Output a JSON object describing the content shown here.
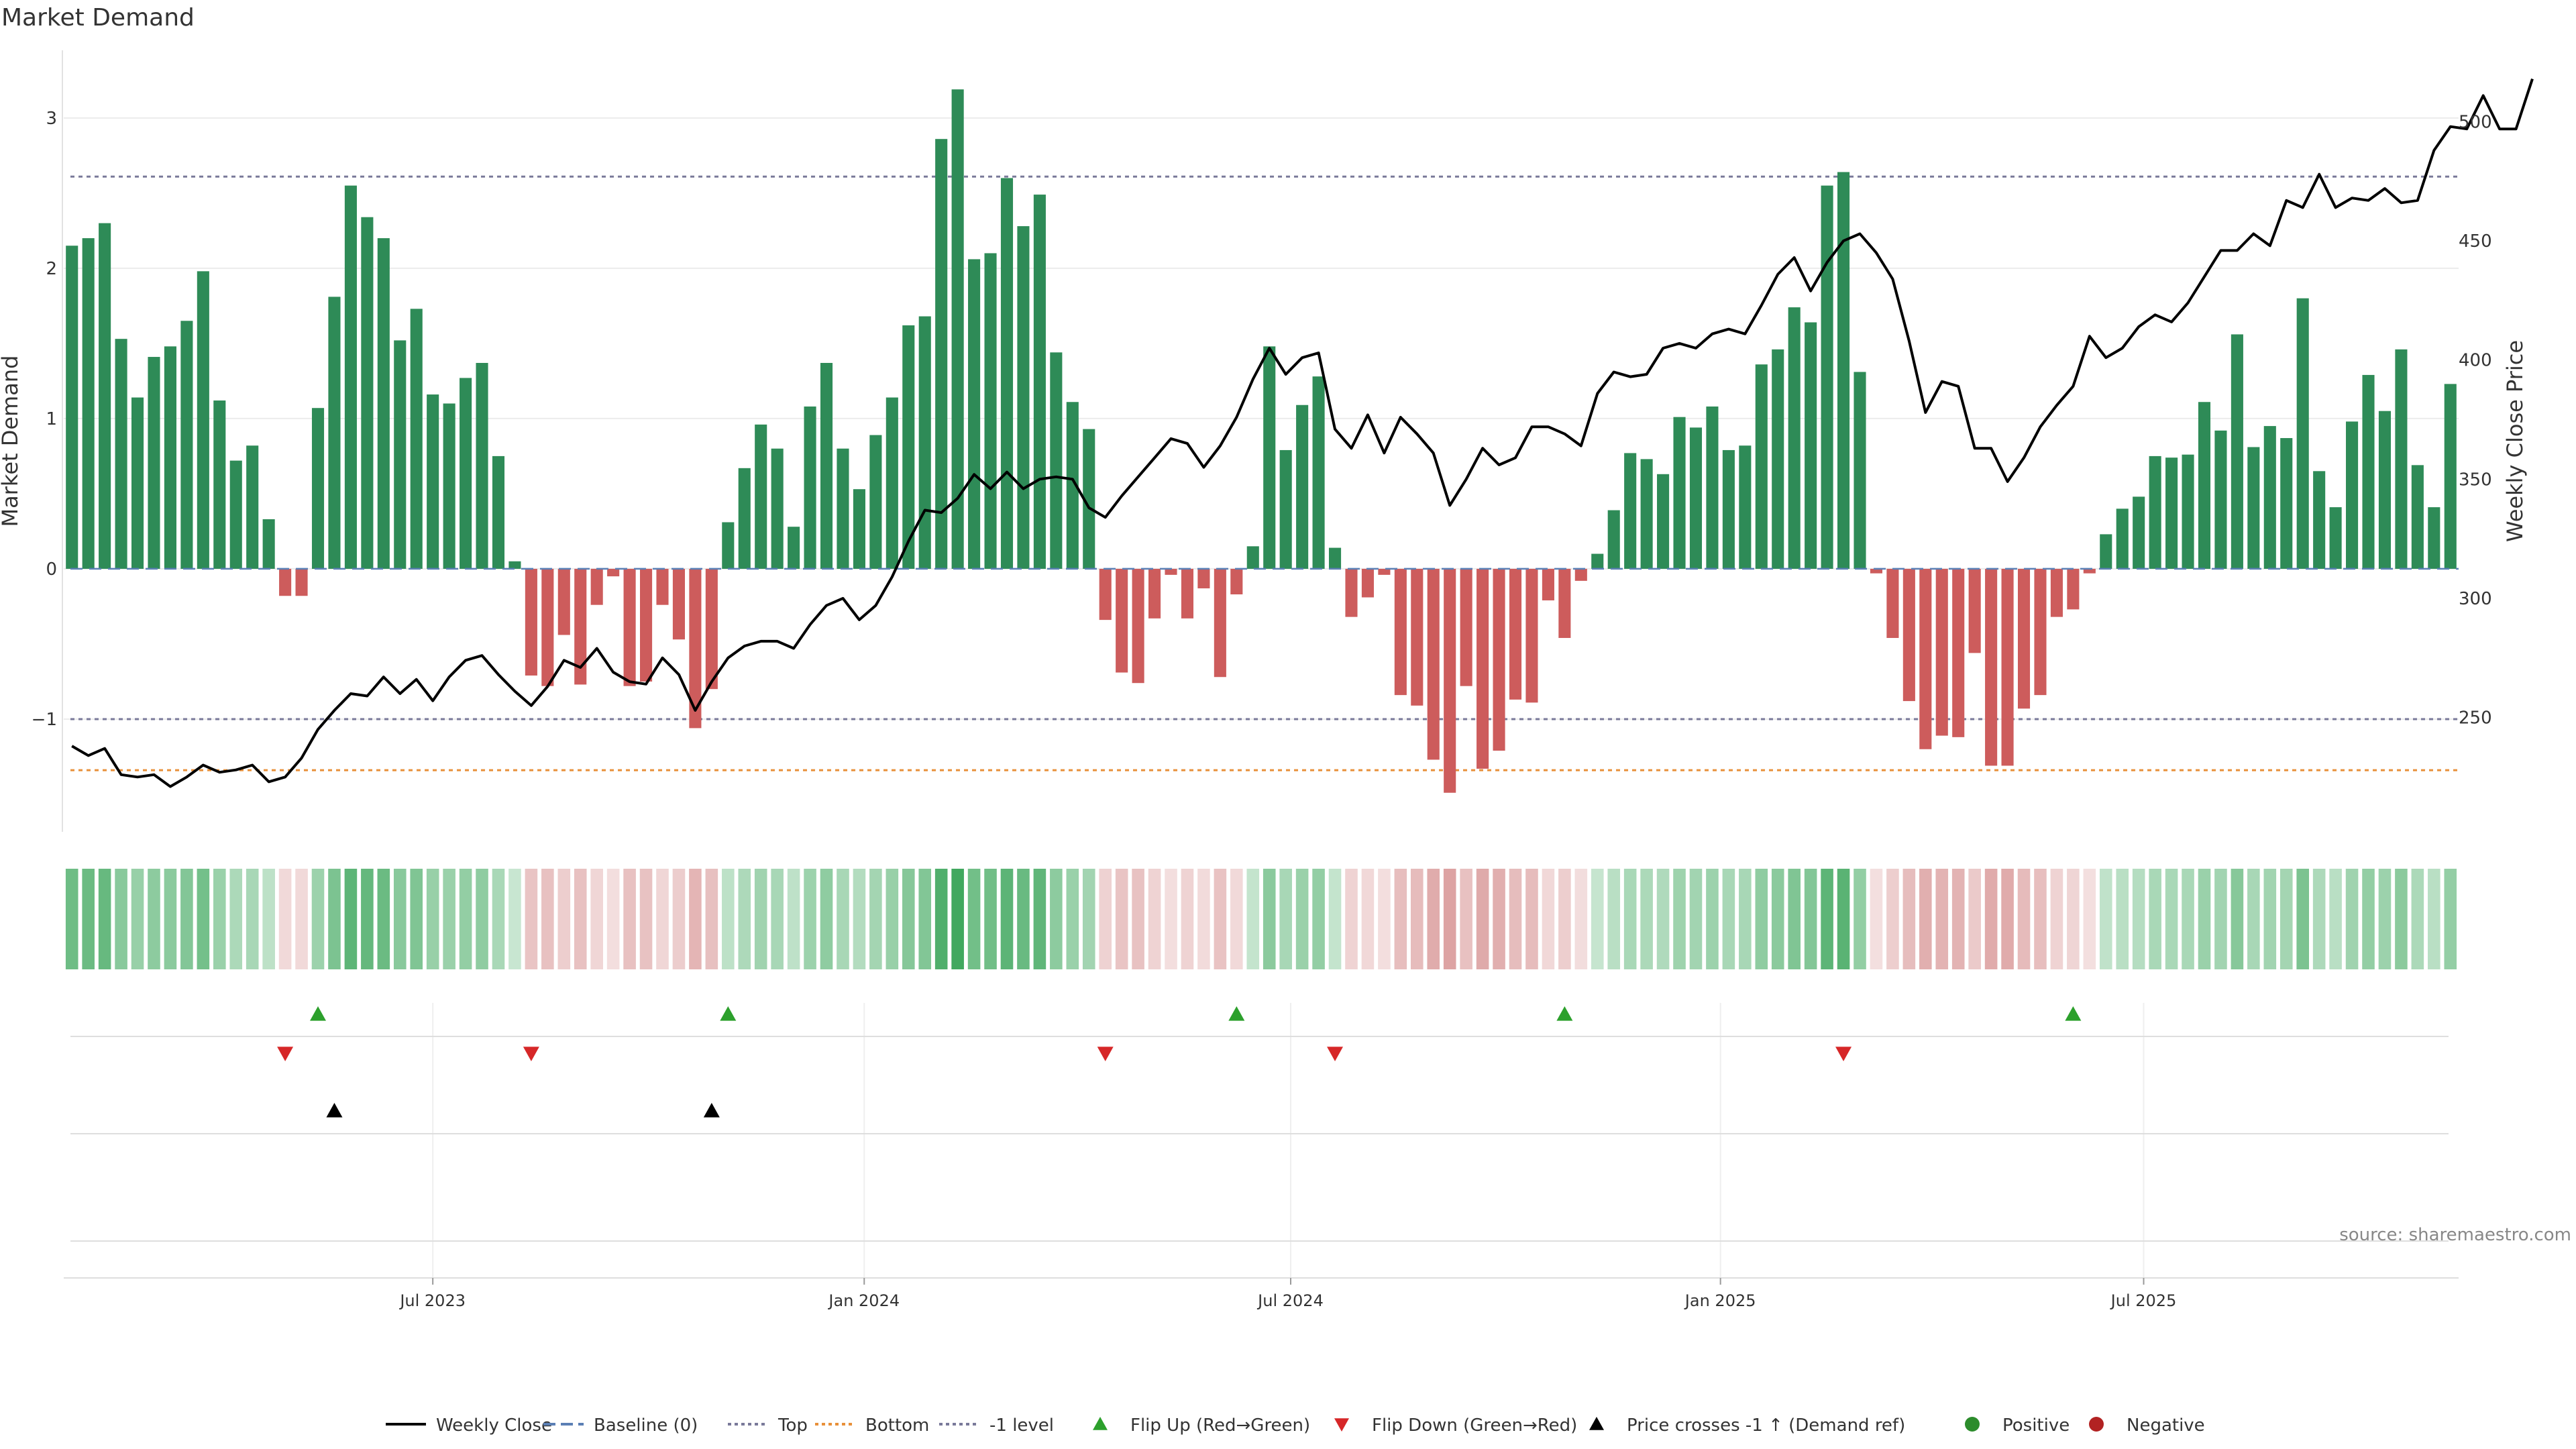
{
  "title": "Market Demand",
  "source": "source: sharemaestro.com",
  "colors": {
    "positive": "#2e8b57",
    "negative": "#cd5c5c",
    "price_line": "#000000",
    "level_line": "#7a7a9a",
    "bottom_line": "#e8903a",
    "flip_up": "#2ca02c",
    "flip_down": "#d62728",
    "price_cross": "#000000",
    "heat_positive_strong": "#41a85f",
    "heat_negative_strong": "#d99999"
  },
  "chart_data": {
    "type": "bar",
    "title": "Market Demand",
    "ylabel": "Market Demand",
    "y2label": "Weekly Close Price",
    "ylim": [
      -1.75,
      3.45
    ],
    "y2lim": [
      202,
      530
    ],
    "yticks": [
      -1,
      0,
      1,
      2,
      3
    ],
    "y2ticks": [
      250,
      300,
      350,
      400,
      450,
      500
    ],
    "x_tick_labels": [
      "Jul 2023",
      "Jan 2024",
      "Jul 2024",
      "Jan 2025",
      "Jul 2025"
    ],
    "x_tick_positions": [
      22.5,
      48.8,
      74.8,
      101,
      126.8
    ],
    "reference_lines": {
      "top": 2.61,
      "minus_one_level": -1,
      "bottom": -1.34,
      "baseline": 0
    },
    "demand": [
      2.15,
      2.2,
      2.3,
      1.53,
      1.14,
      1.41,
      1.48,
      1.65,
      1.98,
      1.12,
      0.72,
      0.82,
      0.33,
      -0.18,
      -0.18,
      1.07,
      1.81,
      2.55,
      2.34,
      2.2,
      1.52,
      1.73,
      1.16,
      1.1,
      1.27,
      1.37,
      0.75,
      0.05,
      -0.71,
      -0.78,
      -0.44,
      -0.77,
      -0.24,
      -0.05,
      -0.78,
      -0.75,
      -0.24,
      -0.47,
      -1.06,
      -0.8,
      0.31,
      0.67,
      0.96,
      0.8,
      0.28,
      1.08,
      1.37,
      0.8,
      0.53,
      0.89,
      1.14,
      1.62,
      1.68,
      2.86,
      3.19,
      2.06,
      2.1,
      2.6,
      2.28,
      2.49,
      1.44,
      1.11,
      0.93,
      -0.34,
      -0.69,
      -0.76,
      -0.33,
      -0.04,
      -0.33,
      -0.13,
      -0.72,
      -0.17,
      0.15,
      1.48,
      0.79,
      1.09,
      1.28,
      0.14,
      -0.32,
      -0.19,
      -0.04,
      -0.84,
      -0.91,
      -1.27,
      -1.49,
      -0.78,
      -1.33,
      -1.21,
      -0.87,
      -0.89,
      -0.21,
      -0.46,
      -0.08,
      0.1,
      0.39,
      0.77,
      0.73,
      0.63,
      1.01,
      0.94,
      1.08,
      0.79,
      0.82,
      1.36,
      1.46,
      1.74,
      1.64,
      2.55,
      2.64,
      1.31,
      -0.03,
      -0.46,
      -0.88,
      -1.2,
      -1.11,
      -1.12,
      -0.56,
      -1.31,
      -1.31,
      -0.93,
      -0.84,
      -0.32,
      -0.27,
      -0.03,
      0.23,
      0.4,
      0.48,
      0.75,
      0.74,
      0.76,
      1.11,
      0.92,
      1.56,
      0.81,
      0.95,
      0.87,
      1.8,
      0.65,
      0.41,
      0.98,
      1.29,
      1.05,
      1.46,
      0.69,
      0.41,
      1.23
    ],
    "price": [
      238,
      234,
      237,
      226,
      225,
      226,
      221,
      225,
      230,
      227,
      228,
      230,
      223,
      225,
      233,
      245,
      253,
      260,
      259,
      267,
      260,
      266,
      257,
      267,
      274,
      276,
      268,
      261,
      255,
      263,
      274,
      271,
      279,
      269,
      265,
      264,
      275,
      268,
      253,
      265,
      275,
      280,
      282,
      282,
      279,
      289,
      297,
      300,
      291,
      297,
      309,
      324,
      337,
      336,
      342,
      352,
      346,
      353,
      346,
      350,
      351,
      350,
      338,
      334,
      343,
      351,
      359,
      367,
      365,
      355,
      364,
      376,
      392,
      405,
      394,
      401,
      403,
      371,
      363,
      377,
      361,
      376,
      369,
      361,
      339,
      350,
      363,
      356,
      359,
      372,
      372,
      369,
      364,
      386,
      395,
      393,
      394,
      405,
      407,
      405,
      411,
      413,
      411,
      423,
      436,
      443,
      429,
      441,
      450,
      453,
      445,
      434,
      408,
      378,
      391,
      389,
      363,
      363,
      349,
      359,
      372,
      381,
      389,
      410,
      401,
      405,
      414,
      419,
      416,
      424,
      435,
      446,
      446,
      453,
      448,
      467,
      464,
      478,
      464,
      468,
      467,
      472,
      466,
      467,
      488,
      498,
      497,
      511,
      497,
      497,
      518
    ],
    "x_start_date": "2023-01-06",
    "flip_up_indices": [
      15,
      40,
      71,
      91,
      122
    ],
    "flip_down_indices": [
      13,
      28,
      63,
      77,
      108
    ],
    "price_cross_indices": [
      16,
      39
    ],
    "legend": [
      {
        "label": "Weekly Close",
        "kind": "line-solid"
      },
      {
        "label": "Baseline (0)",
        "kind": "line-dashed-blue"
      },
      {
        "label": "Top",
        "kind": "line-dotted-purple"
      },
      {
        "label": "Bottom",
        "kind": "line-dotted-orange"
      },
      {
        "label": "-1 level",
        "kind": "line-dotted-purple"
      },
      {
        "label": "Flip Up (Red→Green)",
        "kind": "tri-up-green"
      },
      {
        "label": "Flip Down (Green→Red)",
        "kind": "tri-down-red"
      },
      {
        "label": "Price crosses -1 ↑ (Demand ref)",
        "kind": "tri-up-black"
      },
      {
        "label": "Positive",
        "kind": "dot-green"
      },
      {
        "label": "Negative",
        "kind": "dot-red"
      }
    ]
  }
}
